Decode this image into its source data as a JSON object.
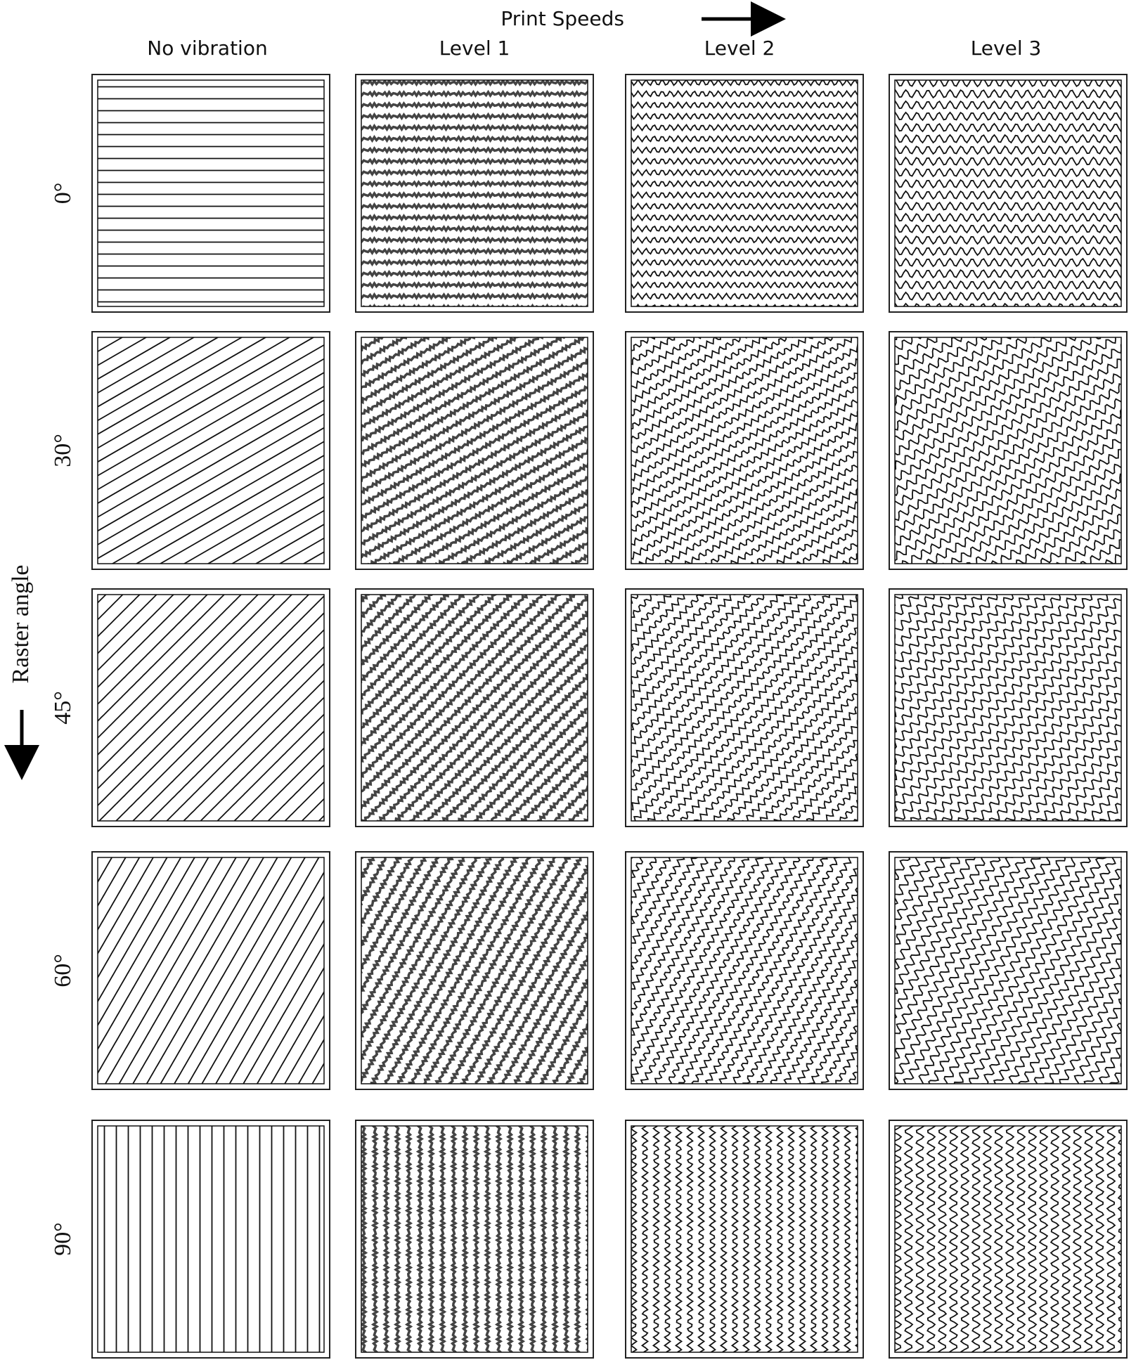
{
  "header": {
    "title": "Print Speeds"
  },
  "columns": [
    "No vibration",
    "Level 1",
    "Level 2",
    "Level 3"
  ],
  "row_axis": {
    "title": "Raster angle"
  },
  "rows": [
    "0°",
    "30°",
    "45°",
    "60°",
    "90°"
  ]
}
